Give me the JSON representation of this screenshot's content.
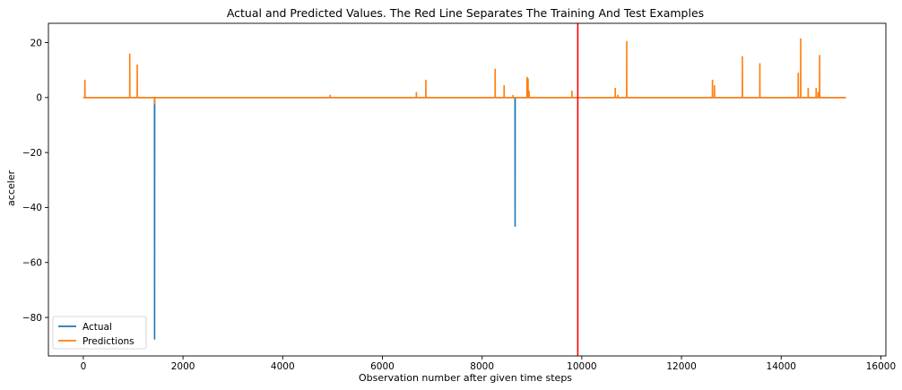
{
  "chart_data": {
    "type": "line",
    "title": "Actual and Predicted Values. The Red Line Separates The Training And Test Examples",
    "xlabel": "Observation number after given time steps",
    "ylabel": "acceler",
    "xlim": [
      -700,
      16100
    ],
    "ylim": [
      -94,
      27
    ],
    "x_ticks": [
      0,
      2000,
      4000,
      6000,
      8000,
      10000,
      12000,
      14000,
      16000
    ],
    "x_tick_labels": [
      "0",
      "2000",
      "4000",
      "6000",
      "8000",
      "10000",
      "12000",
      "14000",
      "16000"
    ],
    "y_ticks": [
      20,
      0,
      -20,
      -40,
      -60,
      -80
    ],
    "y_tick_labels": [
      "20",
      "0",
      "−20",
      "−40",
      "−60",
      "−80"
    ],
    "grid": false,
    "legend_position": "lower-left",
    "split_line": {
      "x": 9920,
      "color": "#ff0000"
    },
    "series": [
      {
        "name": "Actual",
        "color": "#1f77b4",
        "x": [
          0,
          1428,
          1430,
          1432,
          8660,
          8662,
          8664,
          15300
        ],
        "y": [
          0,
          0,
          -88,
          0,
          0,
          -47,
          0,
          0
        ]
      },
      {
        "name": "Predictions",
        "color": "#ff7f0e",
        "x": [
          0,
          30,
          32,
          34,
          930,
          932,
          934,
          1080,
          1082,
          1084,
          1430,
          1432,
          1434,
          4950,
          4952,
          4954,
          6680,
          6682,
          6684,
          6870,
          6872,
          6874,
          8260,
          8262,
          8264,
          8440,
          8442,
          8444,
          8620,
          8622,
          8624,
          8900,
          8902,
          8904,
          8920,
          8922,
          8924,
          8940,
          8942,
          8944,
          9800,
          9802,
          9804,
          10670,
          10672,
          10674,
          10720,
          10722,
          10724,
          10900,
          10902,
          10904,
          12620,
          12622,
          12624,
          12660,
          12662,
          12664,
          13220,
          13222,
          13224,
          13570,
          13572,
          13574,
          14340,
          14342,
          14344,
          14390,
          14392,
          14394,
          14540,
          14542,
          14544,
          14700,
          14702,
          14704,
          14740,
          14742,
          14744,
          14770,
          14772,
          14774,
          15300
        ],
        "y": [
          0,
          0,
          6.5,
          0,
          0,
          16,
          0,
          0,
          12,
          0,
          0,
          -2.5,
          0,
          0,
          1,
          0,
          0,
          2,
          0,
          0,
          6.5,
          0,
          0,
          10.5,
          0,
          0,
          4.5,
          0,
          0,
          1,
          0,
          0,
          7.5,
          0,
          0,
          7,
          0,
          0,
          2.5,
          0,
          0,
          2.5,
          0,
          0,
          3.5,
          0,
          0,
          1,
          0,
          0,
          20.5,
          0,
          0,
          6.5,
          0,
          0,
          4.5,
          0,
          0,
          15,
          0,
          0,
          12.5,
          0,
          0,
          9,
          0,
          0,
          21.5,
          0,
          0,
          3.5,
          0,
          0,
          3.5,
          0,
          0,
          2,
          0,
          0,
          15.5,
          0,
          0
        ]
      }
    ]
  }
}
